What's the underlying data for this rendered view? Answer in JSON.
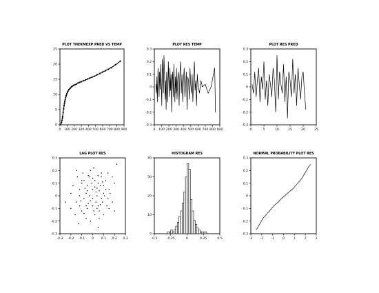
{
  "chart_data": [
    {
      "id": "p1",
      "type": "scatter",
      "title": "PLOT THERMEXP PRED VS TEMP",
      "xticks": [
        "0",
        "100",
        "200",
        "300",
        "400",
        "500",
        "600",
        "700",
        "800",
        "900"
      ],
      "yticks": [
        "0",
        "5",
        "10",
        "15",
        "20",
        "25"
      ],
      "xlim": [
        0,
        900
      ],
      "ylim": [
        0,
        25
      ],
      "fit_curve": [
        [
          10,
          0
        ],
        [
          20,
          0.5
        ],
        [
          30,
          1.5
        ],
        [
          40,
          3.2
        ],
        [
          50,
          5.0
        ],
        [
          60,
          6.6
        ],
        [
          70,
          7.9
        ],
        [
          80,
          9.0
        ],
        [
          90,
          9.8
        ],
        [
          100,
          10.5
        ],
        [
          120,
          11.4
        ],
        [
          140,
          12.0
        ],
        [
          160,
          12.4
        ],
        [
          180,
          12.8
        ],
        [
          200,
          13.1
        ],
        [
          250,
          13.7
        ],
        [
          300,
          14.2
        ],
        [
          350,
          14.7
        ],
        [
          400,
          15.2
        ],
        [
          450,
          15.7
        ],
        [
          500,
          16.2
        ],
        [
          550,
          16.8
        ],
        [
          600,
          17.4
        ],
        [
          650,
          18.0
        ],
        [
          700,
          18.6
        ],
        [
          750,
          19.3
        ],
        [
          800,
          20.1
        ],
        [
          850,
          21.0
        ]
      ],
      "points": [
        [
          22,
          0.7
        ],
        [
          28,
          1.4
        ],
        [
          35,
          2.2
        ],
        [
          38,
          2.7
        ],
        [
          45,
          4.1
        ],
        [
          52,
          5.3
        ],
        [
          58,
          6.3
        ],
        [
          63,
          7.0
        ],
        [
          68,
          7.7
        ],
        [
          74,
          8.3
        ],
        [
          82,
          9.1
        ],
        [
          88,
          9.6
        ],
        [
          95,
          10.2
        ],
        [
          105,
          10.7
        ],
        [
          112,
          11.1
        ],
        [
          125,
          11.6
        ],
        [
          138,
          11.9
        ],
        [
          150,
          12.2
        ],
        [
          165,
          12.6
        ],
        [
          178,
          12.8
        ],
        [
          192,
          13.0
        ],
        [
          210,
          13.2
        ],
        [
          230,
          13.4
        ],
        [
          255,
          13.8
        ],
        [
          280,
          14.0
        ],
        [
          300,
          14.2
        ],
        [
          330,
          14.5
        ],
        [
          360,
          14.8
        ],
        [
          390,
          15.1
        ],
        [
          420,
          15.4
        ],
        [
          450,
          15.7
        ],
        [
          480,
          16.0
        ],
        [
          520,
          16.5
        ],
        [
          560,
          16.9
        ],
        [
          600,
          17.4
        ],
        [
          640,
          17.8
        ],
        [
          680,
          18.3
        ],
        [
          720,
          18.8
        ],
        [
          780,
          19.8
        ],
        [
          850,
          21.0
        ]
      ]
    },
    {
      "id": "p2",
      "type": "line",
      "title": "PLOT RES TEMP",
      "xticks": [
        "0",
        "100",
        "200",
        "300",
        "400",
        "500",
        "600",
        "700",
        "800",
        "900"
      ],
      "yticks": [
        "-0.3",
        "-0.2",
        "-0.1",
        "0",
        "0.1",
        "0.2",
        "0.3"
      ],
      "xlim": [
        0,
        900
      ],
      "ylim": [
        -0.3,
        0.3
      ],
      "x": [
        20,
        28,
        35,
        42,
        50,
        58,
        65,
        72,
        80,
        88,
        95,
        102,
        110,
        118,
        125,
        132,
        140,
        148,
        155,
        162,
        170,
        178,
        185,
        192,
        200,
        208,
        215,
        222,
        230,
        238,
        245,
        252,
        260,
        268,
        275,
        282,
        290,
        298,
        305,
        312,
        320,
        330,
        340,
        350,
        360,
        370,
        380,
        390,
        400,
        410,
        420,
        430,
        440,
        450,
        460,
        470,
        480,
        490,
        500,
        510,
        520,
        530,
        540,
        550,
        560,
        570,
        580,
        590,
        600,
        620,
        640,
        660,
        700,
        740,
        780,
        830,
        840
      ],
      "values": [
        0.02,
        -0.05,
        0.08,
        -0.12,
        0.15,
        0.05,
        -0.08,
        0.12,
        -0.02,
        0.18,
        0.03,
        -0.15,
        0.22,
        0.08,
        -0.05,
        0.25,
        0.1,
        -0.1,
        0.05,
        -0.18,
        0.12,
        0.02,
        -0.12,
        0.2,
        0.05,
        -0.08,
        0.15,
        -0.03,
        0.1,
        -0.2,
        0.05,
        0.12,
        -0.08,
        0.18,
        0.02,
        -0.12,
        0.08,
        -0.05,
        0.15,
        -0.1,
        0.05,
        0.12,
        -0.15,
        0.08,
        0.2,
        -0.05,
        0.1,
        -0.12,
        0.05,
        0.15,
        -0.08,
        0.02,
        0.12,
        -0.18,
        0.08,
        0.05,
        -0.1,
        0.15,
        0.02,
        -0.05,
        0.1,
        -0.12,
        0.08,
        0.2,
        -0.03,
        0.05,
        -0.15,
        0.1,
        0.02,
        -0.05,
        0.05,
        0.0,
        0.02,
        -0.05,
        0.0,
        0.15,
        -0.2
      ]
    },
    {
      "id": "p3",
      "type": "line",
      "title": "PLOT RES PRED",
      "xticks": [
        "0",
        "5",
        "10",
        "15",
        "20",
        "25"
      ],
      "yticks": [
        "-0.3",
        "-0.2",
        "-0.1",
        "0",
        "0.1",
        "0.2",
        "0.3"
      ],
      "xlim": [
        0,
        25
      ],
      "ylim": [
        -0.3,
        0.3
      ],
      "x": [
        0.5,
        1,
        1.5,
        2,
        2.5,
        3,
        3.5,
        4,
        4.5,
        5,
        5.5,
        6,
        6.5,
        7,
        7.5,
        8,
        8.5,
        9,
        9.5,
        10,
        10.5,
        11,
        11.5,
        12,
        12.5,
        13,
        13.5,
        14,
        14.5,
        15,
        15.5,
        16,
        16.5,
        17,
        17.5,
        18,
        18.5,
        19,
        19.5,
        20,
        20.5,
        21
      ],
      "values": [
        0.02,
        -0.05,
        0.12,
        -0.08,
        0.05,
        0.15,
        -0.12,
        0.08,
        -0.02,
        0.2,
        -0.1,
        0.05,
        -0.15,
        0.1,
        0.02,
        -0.08,
        0.15,
        0.05,
        -0.2,
        0.25,
        -0.1,
        0.12,
        0.02,
        -0.05,
        0.18,
        -0.12,
        0.08,
        -0.25,
        0.12,
        0.05,
        -0.08,
        0.22,
        -0.05,
        0.1,
        -0.15,
        0.15,
        0.02,
        -0.1,
        0.08,
        0.12,
        -0.05,
        -0.18
      ]
    },
    {
      "id": "p4",
      "type": "scatter",
      "title": "LAG PLOT RES",
      "xticks": [
        "-0.3",
        "-0.2",
        "-0.1",
        "0",
        "0.1",
        "0.2",
        "0.3"
      ],
      "yticks": [
        "-0.3",
        "-0.2",
        "-0.1",
        "0",
        "0.1",
        "0.2",
        "0.3"
      ],
      "xlim": [
        -0.3,
        0.3
      ],
      "ylim": [
        -0.3,
        0.3
      ],
      "points": [
        [
          -0.12,
          0.05
        ],
        [
          0.05,
          -0.08
        ],
        [
          -0.08,
          0.12
        ],
        [
          0.1,
          0.02
        ],
        [
          0.02,
          -0.15
        ],
        [
          -0.15,
          -0.05
        ],
        [
          0.08,
          0.15
        ],
        [
          -0.05,
          0.08
        ],
        [
          0.15,
          -0.1
        ],
        [
          -0.02,
          0.2
        ],
        [
          0.12,
          0.05
        ],
        [
          -0.1,
          -0.12
        ],
        [
          0.05,
          0.1
        ],
        [
          0.0,
          -0.02
        ],
        [
          -0.18,
          0.08
        ],
        [
          0.2,
          0.1
        ],
        [
          -0.06,
          -0.18
        ],
        [
          0.09,
          -0.05
        ],
        [
          -0.03,
          0.15
        ],
        [
          0.14,
          0.18
        ],
        [
          0.04,
          0.0
        ],
        [
          -0.12,
          -0.08
        ],
        [
          0.07,
          0.08
        ],
        [
          -0.08,
          -0.02
        ],
        [
          0.18,
          -0.05
        ],
        [
          -0.2,
          0.02
        ],
        [
          0.02,
          0.12
        ],
        [
          -0.05,
          -0.1
        ],
        [
          0.1,
          -0.15
        ],
        [
          0.0,
          0.05
        ],
        [
          -0.14,
          0.15
        ],
        [
          0.06,
          -0.12
        ],
        [
          0.12,
          0.12
        ],
        [
          -0.1,
          0.1
        ],
        [
          0.03,
          -0.05
        ],
        [
          -0.02,
          -0.2
        ],
        [
          0.16,
          0.02
        ],
        [
          -0.06,
          0.02
        ],
        [
          0.08,
          -0.02
        ],
        [
          -0.16,
          -0.15
        ],
        [
          0.22,
          0.25
        ],
        [
          -0.25,
          -0.05
        ],
        [
          0.01,
          0.22
        ],
        [
          0.05,
          -0.25
        ],
        [
          -0.09,
          0.18
        ],
        [
          0.13,
          -0.08
        ],
        [
          -0.04,
          -0.06
        ],
        [
          0.02,
          0.07
        ],
        [
          0.1,
          0.08
        ],
        [
          -0.12,
          0.0
        ],
        [
          0.06,
          0.04
        ],
        [
          -0.07,
          0.06
        ],
        [
          0.04,
          -0.1
        ],
        [
          -0.01,
          0.1
        ],
        [
          0.08,
          0.18
        ],
        [
          -0.2,
          -0.1
        ],
        [
          0.18,
          0.15
        ],
        [
          -0.13,
          -0.22
        ],
        [
          0.14,
          -0.02
        ],
        [
          0.0,
          -0.08
        ],
        [
          -0.05,
          0.04
        ],
        [
          0.03,
          0.03
        ],
        [
          -0.02,
          -0.04
        ],
        [
          0.07,
          -0.07
        ],
        [
          -0.1,
          0.12
        ],
        [
          0.11,
          0.0
        ],
        [
          -0.03,
          0.0
        ],
        [
          0.05,
          0.16
        ],
        [
          -0.08,
          -0.14
        ],
        [
          0.2,
          -0.12
        ],
        [
          -0.15,
          0.2
        ],
        [
          0.01,
          -0.12
        ],
        [
          0.09,
          0.11
        ],
        [
          -0.11,
          -0.04
        ],
        [
          0.04,
          0.06
        ],
        [
          -0.06,
          -0.08
        ],
        [
          0.0,
          0.14
        ],
        [
          0.15,
          0.05
        ],
        [
          -0.04,
          0.16
        ],
        [
          0.06,
          -0.18
        ]
      ]
    },
    {
      "id": "p5",
      "type": "bar",
      "title": "HISTOGRAM RES",
      "xticks": [
        "-0.5",
        "-0.25",
        "0",
        "0.25",
        "0.5"
      ],
      "yticks": [
        "0",
        "10",
        "20",
        "30",
        "40"
      ],
      "xlim": [
        -0.5,
        0.5
      ],
      "ylim": [
        0,
        40
      ],
      "bin_left": [
        -0.3,
        -0.275,
        -0.25,
        -0.225,
        -0.2,
        -0.175,
        -0.15,
        -0.125,
        -0.1,
        -0.075,
        -0.05,
        -0.025,
        0,
        0.025,
        0.05,
        0.075,
        0.1,
        0.125,
        0.15,
        0.175,
        0.2,
        0.225,
        0.25,
        0.275
      ],
      "bin_width": 0.025,
      "values": [
        1,
        1,
        2,
        1,
        2,
        4,
        6,
        9,
        12,
        16,
        22,
        30,
        37,
        34,
        18,
        12,
        7,
        5,
        3,
        2,
        1,
        1,
        1,
        1
      ]
    },
    {
      "id": "p6",
      "type": "line",
      "title": "NORMAL PROBABILITY PLOT RES",
      "xticks": [
        "-3",
        "-2",
        "-1",
        "0",
        "1",
        "2",
        "3"
      ],
      "yticks": [
        "-0.3",
        "-0.2",
        "-0.1",
        "0",
        "0.1",
        "0.2",
        "0.3"
      ],
      "xlim": [
        -3,
        3
      ],
      "ylim": [
        -0.3,
        0.3
      ],
      "x": [
        -2.5,
        -2.3,
        -2.1,
        -1.9,
        -1.7,
        -1.5,
        -1.3,
        -1.1,
        -0.9,
        -0.7,
        -0.5,
        -0.3,
        -0.1,
        0.1,
        0.3,
        0.5,
        0.7,
        0.9,
        1.1,
        1.3,
        1.5,
        1.7,
        1.9,
        2.1,
        2.3,
        2.5
      ],
      "values": [
        -0.27,
        -0.24,
        -0.21,
        -0.18,
        -0.16,
        -0.14,
        -0.12,
        -0.1,
        -0.08,
        -0.065,
        -0.05,
        -0.03,
        -0.015,
        0.0,
        0.015,
        0.03,
        0.045,
        0.06,
        0.08,
        0.1,
        0.12,
        0.14,
        0.17,
        0.2,
        0.23,
        0.25
      ]
    }
  ]
}
